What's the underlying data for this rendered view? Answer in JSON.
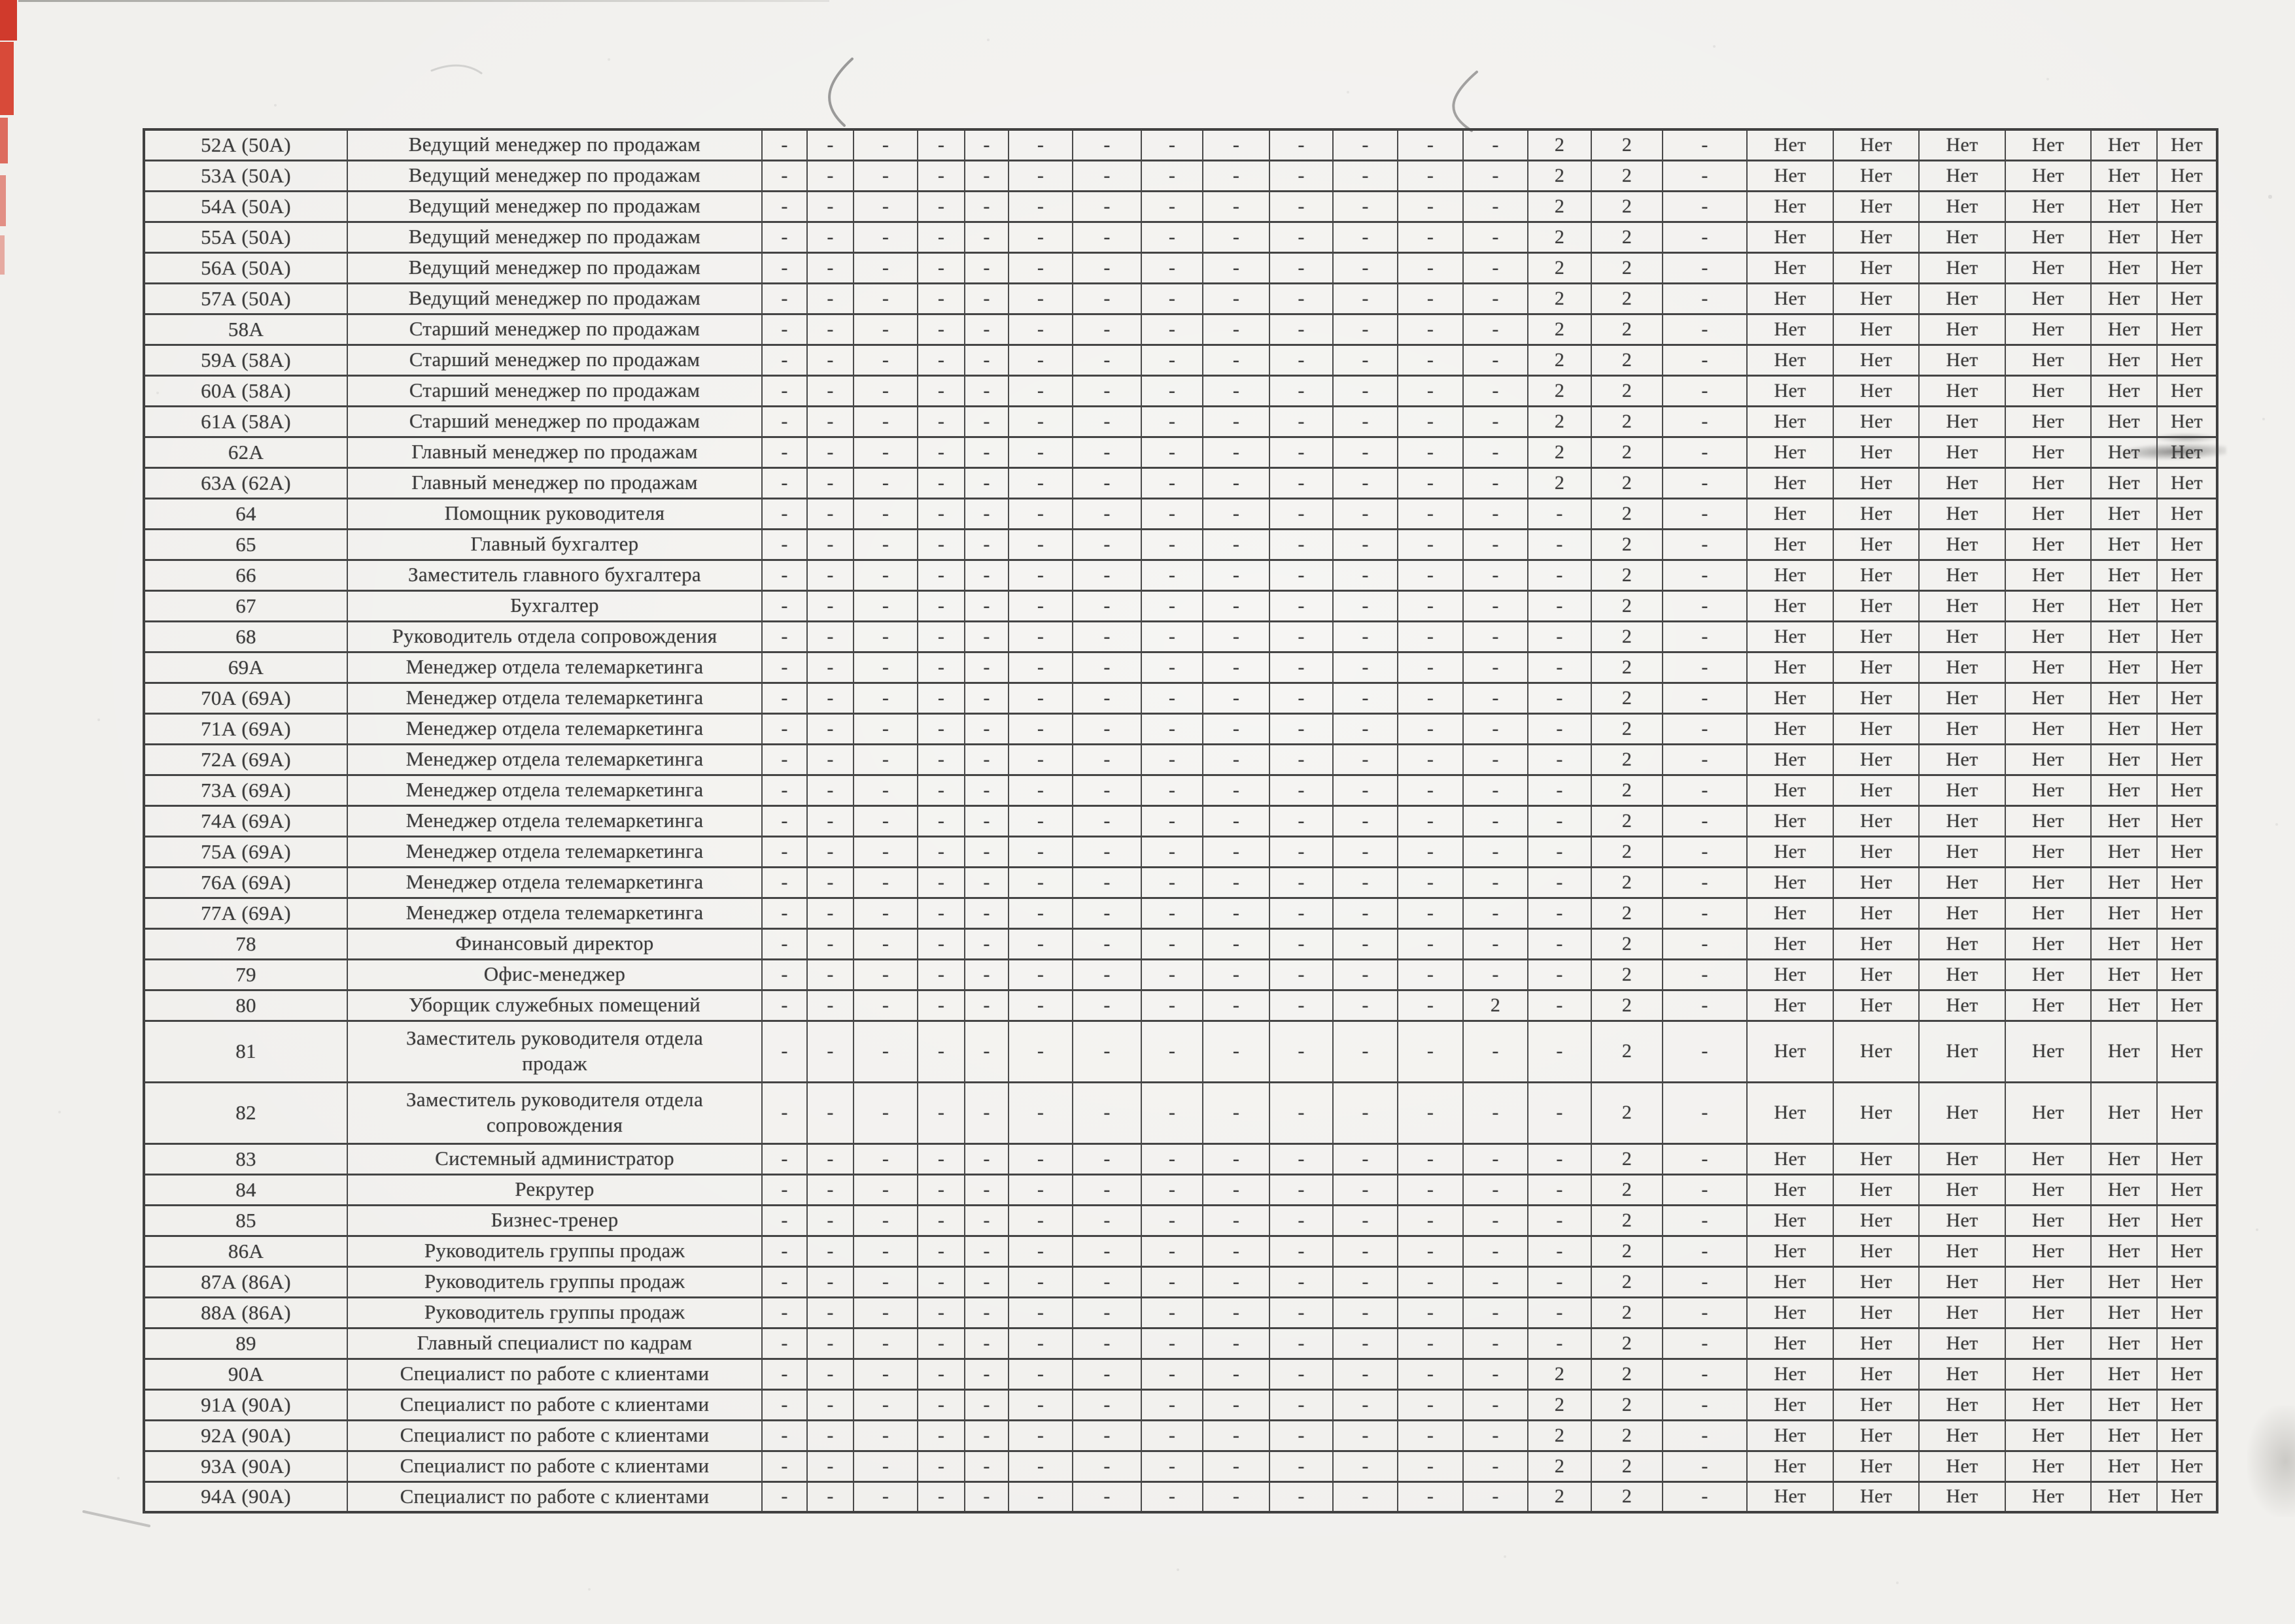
{
  "document": {
    "language": "ru",
    "page_kind": "scanned-table-continuation"
  },
  "colors": {
    "paper": "#f1f0ed",
    "ink": "#3c3c3c",
    "grid_line": "#4a4a4a",
    "red_strip": "#d03a2c",
    "smudge": "#464646"
  },
  "table": {
    "no_label": "Нет",
    "dash_label": "-",
    "two_label": "2",
    "value_patterns": {
      "A": [
        "-",
        "-",
        "-",
        "-",
        "-",
        "-",
        "-",
        "-",
        "-",
        "-",
        "-",
        "-",
        "-",
        "2",
        "2",
        "-",
        "Нет",
        "Нет",
        "Нет",
        "Нет",
        "Нет",
        "Нет"
      ],
      "B": [
        "-",
        "-",
        "-",
        "-",
        "-",
        "-",
        "-",
        "-",
        "-",
        "-",
        "-",
        "-",
        "-",
        "-",
        "2",
        "-",
        "Нет",
        "Нет",
        "Нет",
        "Нет",
        "Нет",
        "Нет"
      ],
      "C": [
        "-",
        "-",
        "-",
        "-",
        "-",
        "-",
        "-",
        "-",
        "-",
        "-",
        "-",
        "-",
        "2",
        "-",
        "2",
        "-",
        "Нет",
        "Нет",
        "Нет",
        "Нет",
        "Нет",
        "Нет"
      ]
    },
    "rows": [
      {
        "id": "52А (50А)",
        "title": "Ведущий менеджер по продажам",
        "pattern": "A"
      },
      {
        "id": "53А (50А)",
        "title": "Ведущий менеджер по продажам",
        "pattern": "A"
      },
      {
        "id": "54А (50А)",
        "title": "Ведущий менеджер по продажам",
        "pattern": "A"
      },
      {
        "id": "55А (50А)",
        "title": "Ведущий менеджер по продажам",
        "pattern": "A"
      },
      {
        "id": "56А (50А)",
        "title": "Ведущий менеджер по продажам",
        "pattern": "A"
      },
      {
        "id": "57А (50А)",
        "title": "Ведущий менеджер по продажам",
        "pattern": "A"
      },
      {
        "id": "58А",
        "title": "Старший менеджер по продажам",
        "pattern": "A"
      },
      {
        "id": "59А (58А)",
        "title": "Старший менеджер по продажам",
        "pattern": "A"
      },
      {
        "id": "60А (58А)",
        "title": "Старший менеджер по продажам",
        "pattern": "A"
      },
      {
        "id": "61А (58А)",
        "title": "Старший менеджер по продажам",
        "pattern": "A"
      },
      {
        "id": "62А",
        "title": "Главный менеджер по продажам",
        "pattern": "A"
      },
      {
        "id": "63А (62А)",
        "title": "Главный менеджер по продажам",
        "pattern": "A"
      },
      {
        "id": "64",
        "title": "Помощник руководителя",
        "pattern": "B"
      },
      {
        "id": "65",
        "title": "Главный бухгалтер",
        "pattern": "B"
      },
      {
        "id": "66",
        "title": "Заместитель главного бухгалтера",
        "pattern": "B"
      },
      {
        "id": "67",
        "title": "Бухгалтер",
        "pattern": "B"
      },
      {
        "id": "68",
        "title": "Руководитель отдела сопровождения",
        "pattern": "B"
      },
      {
        "id": "69А",
        "title": "Менеджер отдела телемаркетинга",
        "pattern": "B"
      },
      {
        "id": "70А (69А)",
        "title": "Менеджер отдела телемаркетинга",
        "pattern": "B"
      },
      {
        "id": "71А (69А)",
        "title": "Менеджер отдела телемаркетинга",
        "pattern": "B"
      },
      {
        "id": "72А (69А)",
        "title": "Менеджер отдела телемаркетинга",
        "pattern": "B"
      },
      {
        "id": "73А (69А)",
        "title": "Менеджер отдела телемаркетинга",
        "pattern": "B"
      },
      {
        "id": "74А (69А)",
        "title": "Менеджер отдела телемаркетинга",
        "pattern": "B"
      },
      {
        "id": "75А (69А)",
        "title": "Менеджер отдела телемаркетинга",
        "pattern": "B"
      },
      {
        "id": "76А (69А)",
        "title": "Менеджер отдела телемаркетинга",
        "pattern": "B"
      },
      {
        "id": "77А (69А)",
        "title": "Менеджер отдела телемаркетинга",
        "pattern": "B"
      },
      {
        "id": "78",
        "title": "Финансовый директор",
        "pattern": "B"
      },
      {
        "id": "79",
        "title": "Офис-менеджер",
        "pattern": "B"
      },
      {
        "id": "80",
        "title": "Уборщик служебных помещений",
        "pattern": "C"
      },
      {
        "id": "81",
        "title": [
          "Заместитель руководителя отдела",
          "продаж"
        ],
        "pattern": "B",
        "tall": true
      },
      {
        "id": "82",
        "title": [
          "Заместитель руководителя отдела",
          "сопровождения"
        ],
        "pattern": "B",
        "tall": true
      },
      {
        "id": "83",
        "title": "Системный администратор",
        "pattern": "B"
      },
      {
        "id": "84",
        "title": "Рекрутер",
        "pattern": "B"
      },
      {
        "id": "85",
        "title": "Бизнес-тренер",
        "pattern": "B"
      },
      {
        "id": "86А",
        "title": "Руководитель группы продаж",
        "pattern": "B"
      },
      {
        "id": "87А (86А)",
        "title": "Руководитель группы продаж",
        "pattern": "B"
      },
      {
        "id": "88А (86А)",
        "title": "Руководитель группы продаж",
        "pattern": "B"
      },
      {
        "id": "89",
        "title": "Главный специалист по кадрам",
        "pattern": "B"
      },
      {
        "id": "90А",
        "title": "Специалист по работе с клиентами",
        "pattern": "A"
      },
      {
        "id": "91А (90А)",
        "title": "Специалист по работе с клиентами",
        "pattern": "A"
      },
      {
        "id": "92А (90А)",
        "title": "Специалист по работе с клиентами",
        "pattern": "A"
      },
      {
        "id": "93А (90А)",
        "title": "Специалист по работе с клиентами",
        "pattern": "A"
      },
      {
        "id": "94А (90А)",
        "title": "Специалист по работе с клиентами",
        "pattern": "A"
      }
    ],
    "smudged_row_id": "62А"
  }
}
